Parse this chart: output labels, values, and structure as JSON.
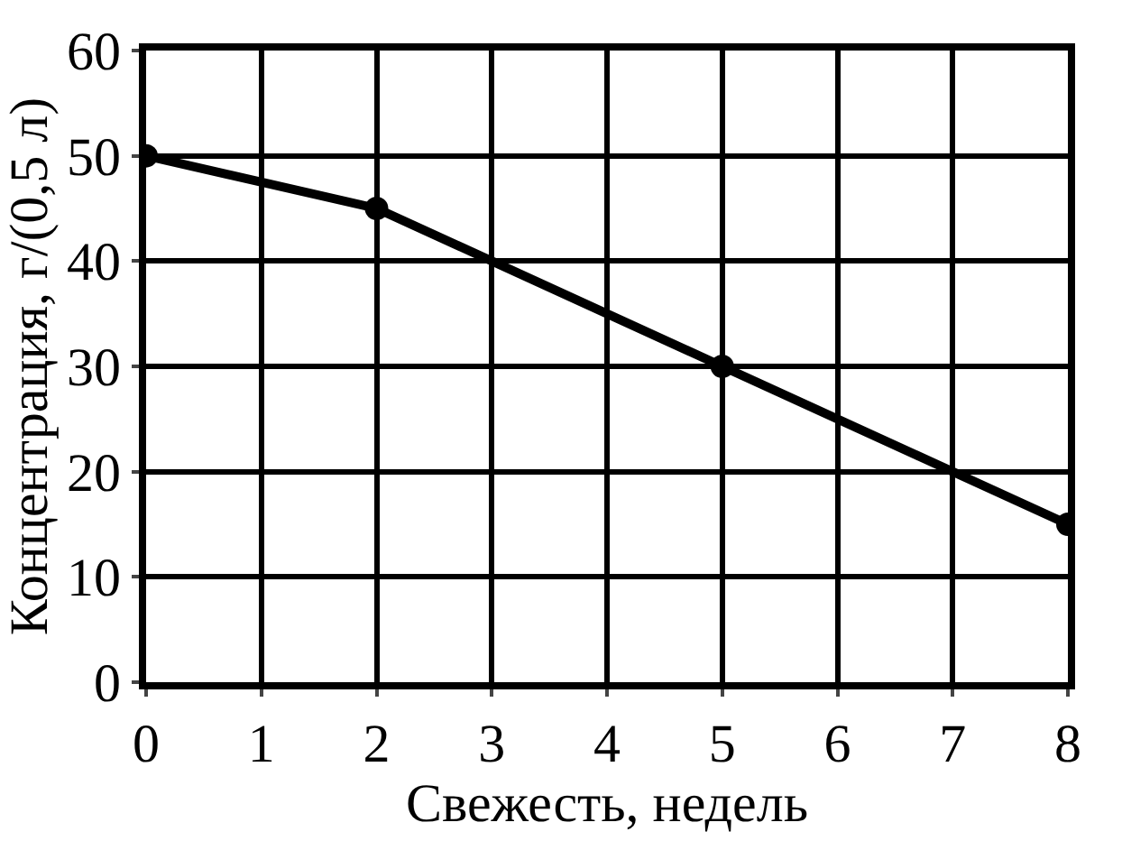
{
  "chart_data": {
    "type": "line",
    "xlabel": "Свежесть, недель",
    "ylabel": "Концентрация, г/(0,5 л)",
    "x": [
      0,
      2,
      5,
      8
    ],
    "series": [
      {
        "color": "#000000",
        "values": [
          50,
          45,
          30,
          15
        ]
      }
    ],
    "xlim": [
      0,
      8
    ],
    "xticks": [
      0,
      1,
      2,
      3,
      4,
      5,
      6,
      7,
      8
    ],
    "ylim": [
      0,
      60
    ],
    "yticks": [
      0,
      10,
      20,
      30,
      40,
      50,
      60
    ],
    "grid": true,
    "marker": "circle",
    "line_style": "solid",
    "legend": false
  }
}
